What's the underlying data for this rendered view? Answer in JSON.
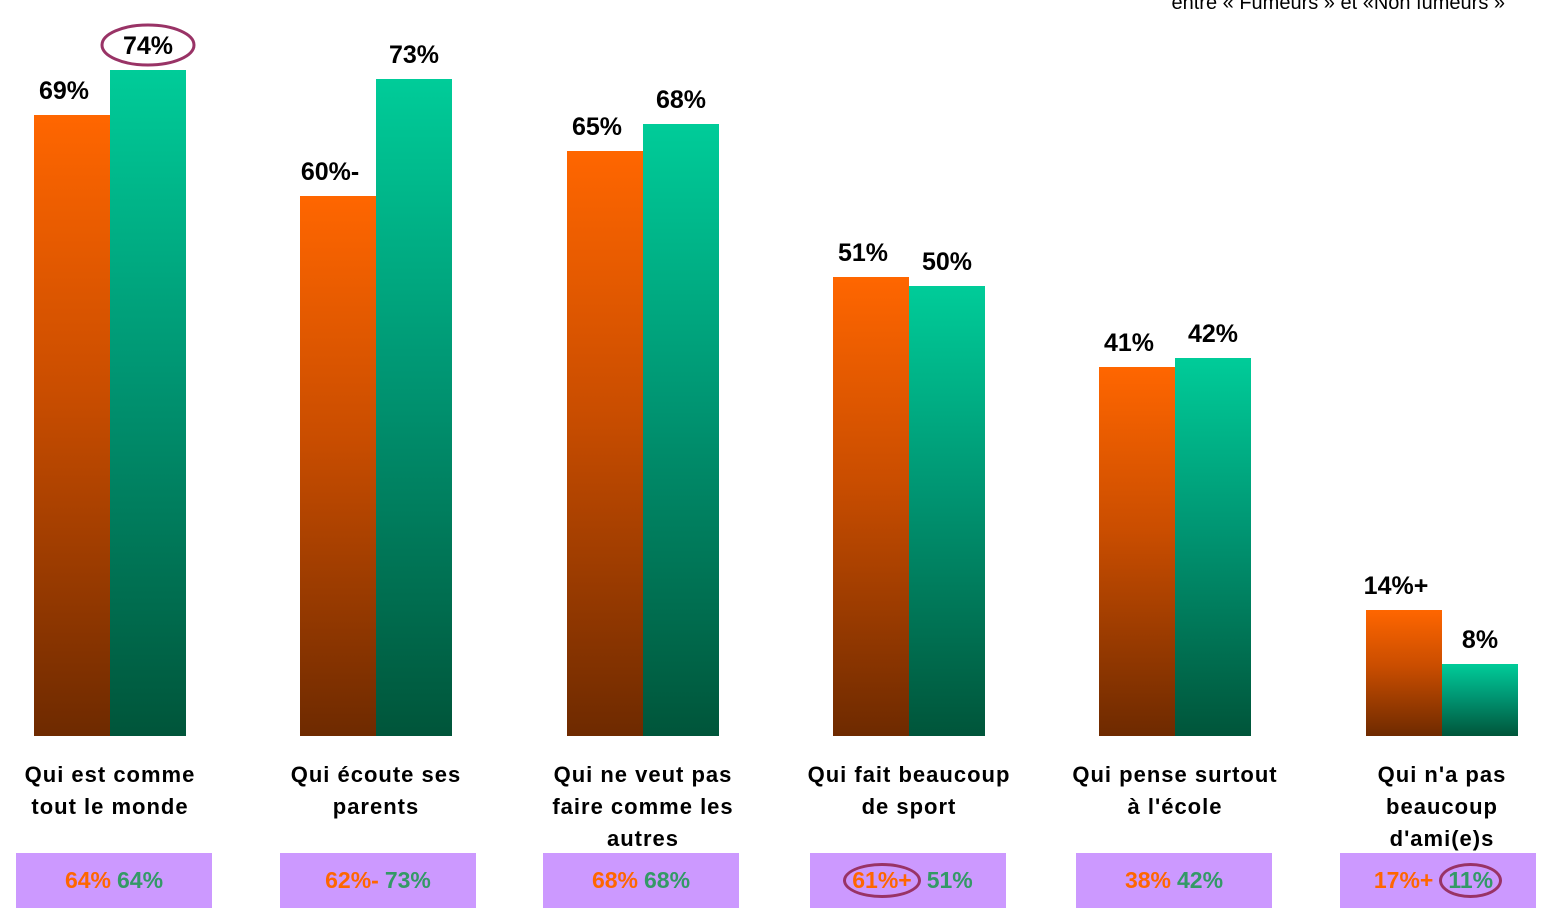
{
  "note": "entre « Fumeurs » et «Non fumeurs »",
  "colors": {
    "orange_top": "#ff6600",
    "orange_bottom": "#6e2a00",
    "green_top": "#00cc99",
    "green_bottom": "#00553a",
    "box": "#cc99ff",
    "circle": "#993366"
  },
  "chart_data": {
    "type": "bar",
    "categories": [
      [
        "Qui est comme",
        "tout le monde"
      ],
      [
        "Qui écoute ses",
        "parents"
      ],
      [
        "Qui ne veut pas",
        "faire comme les",
        "autres"
      ],
      [
        "Qui fait beaucoup",
        "de sport"
      ],
      [
        "Qui pense surtout",
        "à l'école"
      ],
      [
        "Qui n'a pas",
        "beaucoup",
        "d'ami(e)s"
      ]
    ],
    "series": [
      {
        "values": [
          69,
          60,
          65,
          51,
          41,
          14
        ],
        "labels": [
          "69%",
          "60%-",
          "65%",
          "51%",
          "41%",
          "14%+"
        ]
      },
      {
        "values": [
          74,
          73,
          68,
          50,
          42,
          8
        ],
        "labels": [
          "74%",
          "73%",
          "68%",
          "50%",
          "42%",
          "8%"
        ]
      }
    ],
    "ylim": [
      0,
      80
    ],
    "circled": [
      [
        1,
        0
      ]
    ]
  },
  "boxes": [
    {
      "a": "64%",
      "b": "64%"
    },
    {
      "a": "62%-",
      "b": "73%"
    },
    {
      "a": "68%",
      "b": "68%"
    },
    {
      "a": "61%+",
      "b": "51%",
      "circle": "a"
    },
    {
      "a": "38%",
      "b": "42%"
    },
    {
      "a": "17%+",
      "b": "11%",
      "circle": "b"
    }
  ]
}
